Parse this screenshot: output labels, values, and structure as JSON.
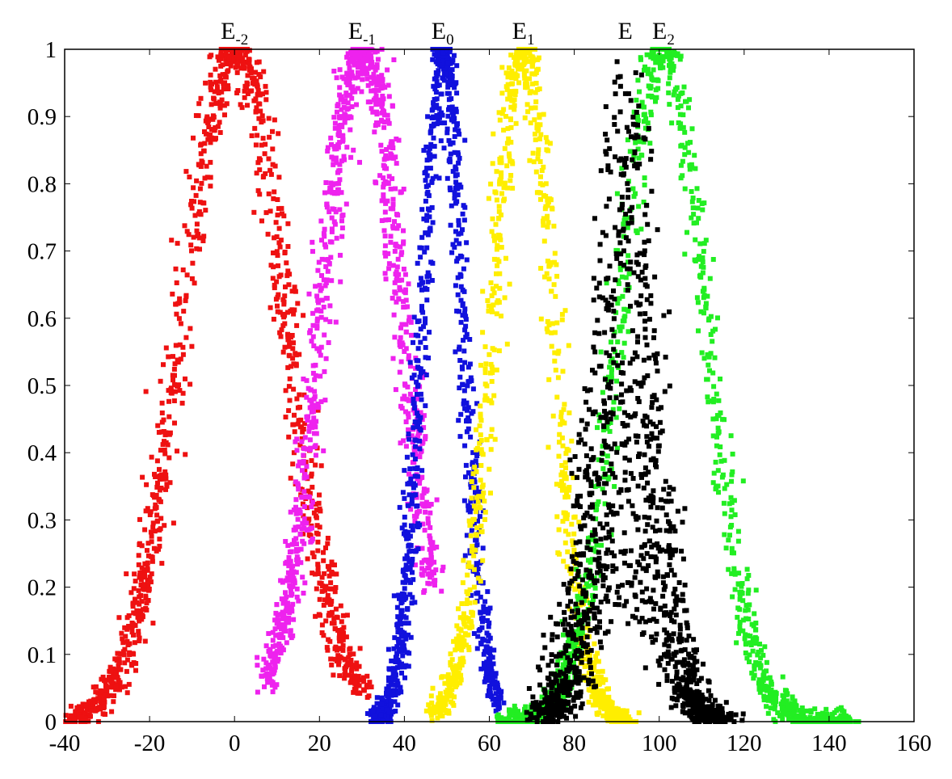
{
  "chart_data": {
    "type": "scatter",
    "title": "",
    "xlabel": "",
    "ylabel": "",
    "xlim": [
      -40,
      160
    ],
    "ylim": [
      0,
      1
    ],
    "grid": false,
    "legend": "none",
    "x_ticks": [
      "-40",
      "-20",
      "0",
      "20",
      "40",
      "60",
      "80",
      "100",
      "120",
      "140",
      "160"
    ],
    "x_tick_values": [
      -40,
      -20,
      0,
      20,
      40,
      60,
      80,
      100,
      120,
      140,
      160
    ],
    "y_ticks": [
      "0",
      "0.1",
      "0.2",
      "0.3",
      "0.4",
      "0.5",
      "0.6",
      "0.7",
      "0.8",
      "0.9",
      "1"
    ],
    "y_tick_values": [
      0,
      0.1,
      0.2,
      0.3,
      0.4,
      0.5,
      0.6,
      0.7,
      0.8,
      0.9,
      1
    ],
    "annotations": [
      {
        "base": "E",
        "sub": "-2",
        "x": 0
      },
      {
        "base": "E",
        "sub": "-1",
        "x": 30
      },
      {
        "base": "E",
        "sub": "0",
        "x": 49
      },
      {
        "base": "E",
        "sub": "1",
        "x": 68
      },
      {
        "base": "E",
        "sub": "",
        "x": 92
      },
      {
        "base": "E",
        "sub": "2",
        "x": 101
      }
    ],
    "series": [
      {
        "peak": 0,
        "width": 12,
        "color": "#ee1111",
        "spread": 1.6,
        "count": 1100,
        "xmin": -38,
        "xmax": 30
      },
      {
        "peak": 30,
        "width": 9.5,
        "color": "#ee22ee",
        "spread": 1.4,
        "count": 1000,
        "xmin": 7,
        "xmax": 47
      },
      {
        "peak": 49,
        "width": 4.8,
        "color": "#1111dd",
        "spread": 1.0,
        "count": 1000,
        "xmin": 33,
        "xmax": 62
      },
      {
        "peak": 68,
        "width": 7,
        "color": "#ffee00",
        "spread": 1.2,
        "count": 950,
        "xmin": 47,
        "xmax": 93
      },
      {
        "peak": 101,
        "width": 10,
        "color": "#22ee22",
        "spread": 1.5,
        "count": 1100,
        "xmin": 64,
        "xmax": 145
      },
      {
        "peak": 92,
        "width": 7,
        "color": "#000000",
        "spread": 9,
        "count": 1300,
        "xmin": 72,
        "xmax": 115
      }
    ]
  }
}
